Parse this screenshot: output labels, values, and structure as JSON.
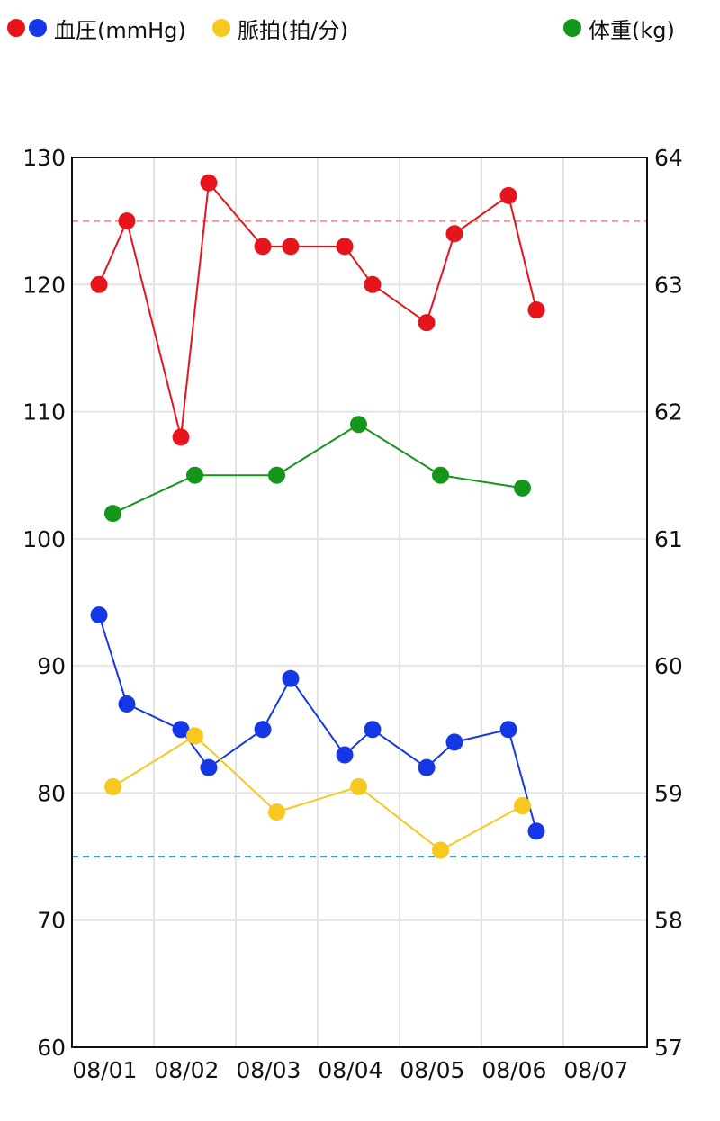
{
  "legend": {
    "bp": {
      "label": "血圧(mmHg)",
      "colors": [
        "#e8141b",
        "#1538e6"
      ]
    },
    "pulse": {
      "label": "脈拍(拍/分)",
      "color": "#f7c91f"
    },
    "weight": {
      "label": "体重(kg)",
      "color": "#13961a"
    }
  },
  "chart_data": {
    "type": "line",
    "title": "",
    "x_categories": [
      "08/01",
      "08/02",
      "08/03",
      "08/04",
      "08/05",
      "08/06",
      "08/07"
    ],
    "y_left": {
      "range": [
        60,
        130
      ],
      "ticks": [
        60,
        70,
        80,
        90,
        100,
        110,
        120,
        130
      ]
    },
    "y_right": {
      "range": [
        57,
        64
      ],
      "ticks": [
        57,
        58,
        59,
        60,
        61,
        62,
        63,
        64
      ]
    },
    "grid": true,
    "reference_lines": [
      {
        "axis": "left",
        "value": 125,
        "color": "#f08a8a",
        "style": "dashed"
      },
      {
        "axis": "left",
        "value": 75,
        "color": "#3d9bd6",
        "style": "dashed"
      }
    ],
    "series": [
      {
        "key": "systolic",
        "axis": "left",
        "color": "#e8141b",
        "x": [
          0.33,
          0.67,
          1.33,
          1.67,
          2.33,
          2.67,
          3.33,
          3.67,
          4.33,
          4.67,
          5.33,
          5.67
        ],
        "y": [
          120,
          125,
          108,
          128,
          123,
          123,
          123,
          120,
          117,
          124,
          127,
          118
        ]
      },
      {
        "key": "diastolic",
        "axis": "left",
        "color": "#1538e6",
        "x": [
          0.33,
          0.67,
          1.33,
          1.67,
          2.33,
          2.67,
          3.33,
          3.67,
          4.33,
          4.67,
          5.33,
          5.67
        ],
        "y": [
          94,
          87,
          85,
          82,
          85,
          89,
          83,
          85,
          82,
          84,
          85,
          77
        ]
      },
      {
        "key": "pulse",
        "axis": "left",
        "color": "#f7c91f",
        "x": [
          0.5,
          1.5,
          2.5,
          3.5,
          4.5,
          5.5
        ],
        "y": [
          80.5,
          84.5,
          78.5,
          80.5,
          75.5,
          79
        ]
      },
      {
        "key": "weight",
        "axis": "right",
        "color": "#13961a",
        "x": [
          0.5,
          1.5,
          2.5,
          3.5,
          4.5,
          5.5
        ],
        "y": [
          61.2,
          61.5,
          61.5,
          61.9,
          61.5,
          61.4
        ]
      }
    ]
  }
}
